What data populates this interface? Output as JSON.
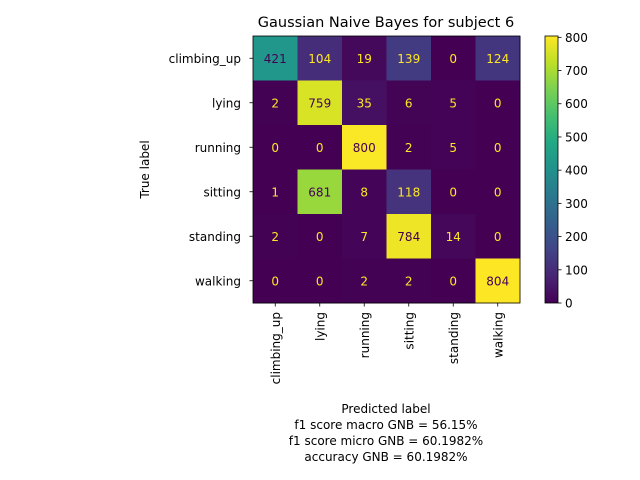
{
  "chart_data": {
    "type": "heatmap",
    "title": "Gaussian Naive Bayes for subject 6",
    "ylabel": "True label",
    "xlabel": "Predicted label",
    "xlabel_lines": [
      "f1 score macro GNB = 56.15%",
      "f1 score micro GNB = 60.1982%",
      "accuracy GNB = 60.1982%"
    ],
    "row_labels": [
      "climbing_up",
      "lying",
      "running",
      "sitting",
      "standing",
      "walking"
    ],
    "col_labels": [
      "climbing_up",
      "lying",
      "running",
      "sitting",
      "standing",
      "walking"
    ],
    "values": [
      [
        421,
        104,
        19,
        139,
        0,
        124
      ],
      [
        2,
        759,
        35,
        6,
        5,
        0
      ],
      [
        0,
        0,
        800,
        2,
        5,
        0
      ],
      [
        1,
        681,
        8,
        118,
        0,
        0
      ],
      [
        2,
        0,
        7,
        784,
        14,
        0
      ],
      [
        0,
        0,
        2,
        2,
        0,
        804
      ]
    ],
    "colormap": "viridis",
    "color_range": [
      0,
      804
    ],
    "colorbar_ticks": [
      "0",
      "100",
      "200",
      "300",
      "400",
      "500",
      "600",
      "700",
      "800"
    ],
    "colorbar_tick_values": [
      0,
      100,
      200,
      300,
      400,
      500,
      600,
      700,
      800
    ],
    "text_color_light": "#fde725",
    "text_color_dark": "#440154"
  }
}
